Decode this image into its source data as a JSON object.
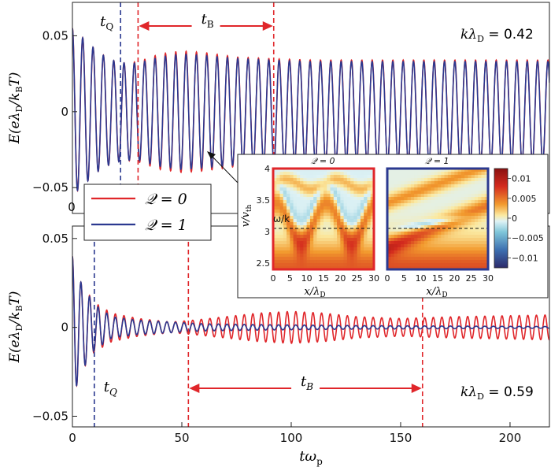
{
  "chart_data": [
    {
      "type": "line",
      "xlim": [
        0,
        218
      ],
      "ylim": [
        -0.067,
        0.072
      ],
      "yticks": [
        {
          "v": 0.05,
          "label": "0.05"
        },
        {
          "v": 0,
          "label": "0"
        },
        {
          "v": -0.05,
          "label": "−0.05"
        }
      ],
      "ylabel_pre": "E(eλ",
      "ylabel_sub1": "D",
      "ylabel_mid": "/k",
      "ylabel_sub2": "B",
      "ylabel_post": "T)",
      "annotation_k": "kλ",
      "annotation_k_sub": "D",
      "annotation_k_val": " = 0.42",
      "marker_tQ": {
        "x": 22,
        "label": "t",
        "sub": "Q"
      },
      "marker_tB": {
        "x0": 30,
        "x1": 92,
        "label": "t",
        "sub": "B"
      },
      "x_tick_zero": "0",
      "series": [
        {
          "name": "Q = 0",
          "color": "#e0262a",
          "omega": 1.33,
          "envelope": [
            [
              0,
              0.055
            ],
            [
              6,
              0.047
            ],
            [
              12,
              0.039
            ],
            [
              18,
              0.034
            ],
            [
              24,
              0.032
            ],
            [
              30,
              0.033
            ],
            [
              40,
              0.038
            ],
            [
              50,
              0.04
            ],
            [
              60,
              0.039
            ],
            [
              75,
              0.036
            ],
            [
              90,
              0.035
            ],
            [
              110,
              0.034
            ],
            [
              150,
              0.034
            ],
            [
              218,
              0.034
            ]
          ]
        },
        {
          "name": "Q = 1",
          "color": "#2b3990",
          "omega": 1.33,
          "envelope": [
            [
              0,
              0.055
            ],
            [
              6,
              0.047
            ],
            [
              12,
              0.039
            ],
            [
              18,
              0.034
            ],
            [
              24,
              0.032
            ],
            [
              30,
              0.032
            ],
            [
              40,
              0.036
            ],
            [
              50,
              0.038
            ],
            [
              60,
              0.037
            ],
            [
              75,
              0.035
            ],
            [
              90,
              0.034
            ],
            [
              110,
              0.033
            ],
            [
              150,
              0.033
            ],
            [
              218,
              0.033
            ]
          ]
        }
      ]
    },
    {
      "type": "line",
      "xlim": [
        0,
        218
      ],
      "ylim": [
        -0.056,
        0.057
      ],
      "xticks": [
        0,
        50,
        100,
        150,
        200
      ],
      "yticks": [
        {
          "v": 0.05,
          "label": "0.05"
        },
        {
          "v": 0,
          "label": "0"
        },
        {
          "v": -0.05,
          "label": "−0.05"
        }
      ],
      "xlabel": "tω",
      "xlabel_sub": "p",
      "annotation_k": "kλ",
      "annotation_k_sub": "D",
      "annotation_k_val": " = 0.59",
      "marker_tQ": {
        "x": 10,
        "label": "t",
        "sub": "Q"
      },
      "marker_tB": {
        "x0": 53,
        "x1": 160,
        "label": "t",
        "sub": "B"
      },
      "series": [
        {
          "name": "Q = 0",
          "color": "#e0262a",
          "omega": 1.6,
          "envelope": [
            [
              0,
              0.04
            ],
            [
              4,
              0.025
            ],
            [
              10,
              0.014
            ],
            [
              18,
              0.008
            ],
            [
              30,
              0.005
            ],
            [
              45,
              0.003
            ],
            [
              55,
              0.004
            ],
            [
              70,
              0.006
            ],
            [
              85,
              0.008
            ],
            [
              100,
              0.009
            ],
            [
              115,
              0.008
            ],
            [
              130,
              0.006
            ],
            [
              150,
              0.005
            ],
            [
              175,
              0.006
            ],
            [
              218,
              0.007
            ]
          ]
        },
        {
          "name": "Q = 1",
          "color": "#2b3990",
          "omega": 1.6,
          "envelope": [
            [
              0,
              0.04
            ],
            [
              4,
              0.025
            ],
            [
              10,
              0.013
            ],
            [
              18,
              0.006
            ],
            [
              30,
              0.004
            ],
            [
              45,
              0.003
            ],
            [
              60,
              0.002
            ],
            [
              90,
              0.0015
            ],
            [
              130,
              0.001
            ],
            [
              218,
              0.0005
            ]
          ]
        }
      ]
    }
  ],
  "legend": {
    "items": [
      {
        "label": "𝒬 = 0",
        "color": "#e0262a"
      },
      {
        "label": "𝒬 = 1",
        "color": "#2b3990"
      }
    ]
  },
  "inset": {
    "left_title": "𝒬 = 0",
    "right_title": "𝒬 = 1",
    "left_frame": "#e0262a",
    "right_frame": "#2b3990",
    "xlim": [
      0,
      30
    ],
    "ylim": [
      2.4,
      4.0
    ],
    "xticks": [
      "0",
      "5",
      "10",
      "15",
      "20",
      "25",
      "30"
    ],
    "yticks": [
      {
        "v": 4.0,
        "label": "4"
      },
      {
        "v": 3.5,
        "label": "3.5"
      },
      {
        "v": 3.0,
        "label": "3"
      },
      {
        "v": 2.5,
        "label": "2.5"
      }
    ],
    "ylabel": "v/v",
    "ylabel_sub": "th",
    "xlabel": "x/λ",
    "xlabel_sub": "D",
    "phase_label": "ω/k",
    "phase_velocity": 3.05,
    "colorbar_ticks": [
      {
        "v": 0.01,
        "label": "0.01"
      },
      {
        "v": 0.005,
        "label": "0.005"
      },
      {
        "v": 0,
        "label": "0"
      },
      {
        "v": -0.005,
        "label": "−0.005"
      },
      {
        "v": -0.01,
        "label": "−0.01"
      }
    ],
    "colorbar_range": [
      -0.0125,
      0.0125
    ]
  }
}
